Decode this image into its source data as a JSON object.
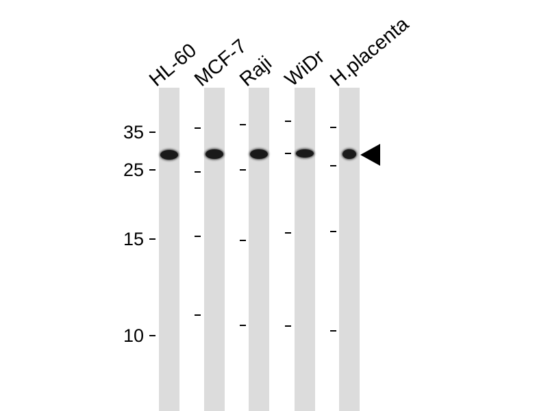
{
  "lanes": [
    "HL-60",
    "MCF-7",
    "Raji",
    "WiDr",
    "H.placenta"
  ],
  "markers": [
    "35",
    "25",
    "15",
    "10"
  ],
  "colors": {
    "lane": "#dcdcdc",
    "band": "#1a1a1a"
  },
  "icons": {
    "arrow": "left-pointing-triangle-icon"
  }
}
